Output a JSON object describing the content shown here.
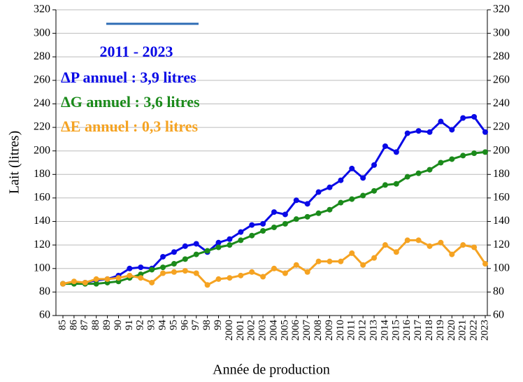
{
  "chart_data": {
    "type": "line",
    "categories": [
      "85",
      "86",
      "87",
      "88",
      "89",
      "90",
      "91",
      "92",
      "93",
      "94",
      "95",
      "96",
      "97",
      "98",
      "99",
      "2000",
      "2001",
      "2002",
      "2003",
      "2004",
      "2005",
      "2006",
      "2007",
      "2008",
      "2009",
      "2010",
      "2011",
      "2012",
      "2013",
      "2014",
      "2015",
      "2016",
      "2017",
      "2018",
      "2019",
      "2020",
      "2021",
      "2022",
      "2023"
    ],
    "series": [
      {
        "color": "#0a0ae6",
        "values": [
          87,
          88,
          88,
          90,
          91,
          94,
          100,
          101,
          100,
          110,
          114,
          119,
          121,
          114,
          122,
          125,
          131,
          137,
          138,
          148,
          146,
          158,
          155,
          165,
          169,
          175,
          185,
          177,
          188,
          204,
          199,
          215,
          217,
          216,
          225,
          218,
          228,
          229,
          216
        ]
      },
      {
        "color": "#1b8a1b",
        "values": [
          87,
          87,
          87,
          87,
          88,
          89,
          92,
          95,
          99,
          101,
          104,
          108,
          112,
          115,
          118,
          120,
          124,
          128,
          132,
          135,
          138,
          142,
          144,
          147,
          150,
          156,
          159,
          162,
          166,
          171,
          172,
          178,
          181,
          184,
          190,
          193,
          196,
          198,
          199
        ]
      },
      {
        "color": "#f5a322",
        "values": [
          87,
          89,
          88,
          91,
          91,
          92,
          94,
          92,
          88,
          96,
          97,
          98,
          96,
          86,
          91,
          92,
          94,
          97,
          93,
          100,
          96,
          103,
          97,
          106,
          106,
          106,
          113,
          103,
          109,
          120,
          114,
          124,
          124,
          119,
          122,
          112,
          120,
          118,
          104
        ]
      }
    ],
    "ylim": [
      60,
      320
    ],
    "yticks": [
      60,
      80,
      100,
      120,
      140,
      160,
      180,
      200,
      220,
      240,
      260,
      280,
      300,
      320
    ],
    "y2lim": [
      60,
      320
    ],
    "y2ticks": [
      60,
      80,
      100,
      120,
      140,
      160,
      180,
      200,
      220,
      240,
      260,
      280,
      300,
      320
    ],
    "grid": true,
    "ylabel": "Lait (litres)",
    "xlabel": "Année de production",
    "annotations": [
      {
        "text": "2011 - 2023",
        "color": "#0a0ae6"
      },
      {
        "text": "ΔP annuel : 3,9 litres",
        "color": "#0a0ae6"
      },
      {
        "text": "ΔG annuel : 3,6 litres",
        "color": "#1b8a1b"
      },
      {
        "text": "ΔE annuel : 0,3 litres",
        "color": "#f5a322"
      }
    ]
  }
}
